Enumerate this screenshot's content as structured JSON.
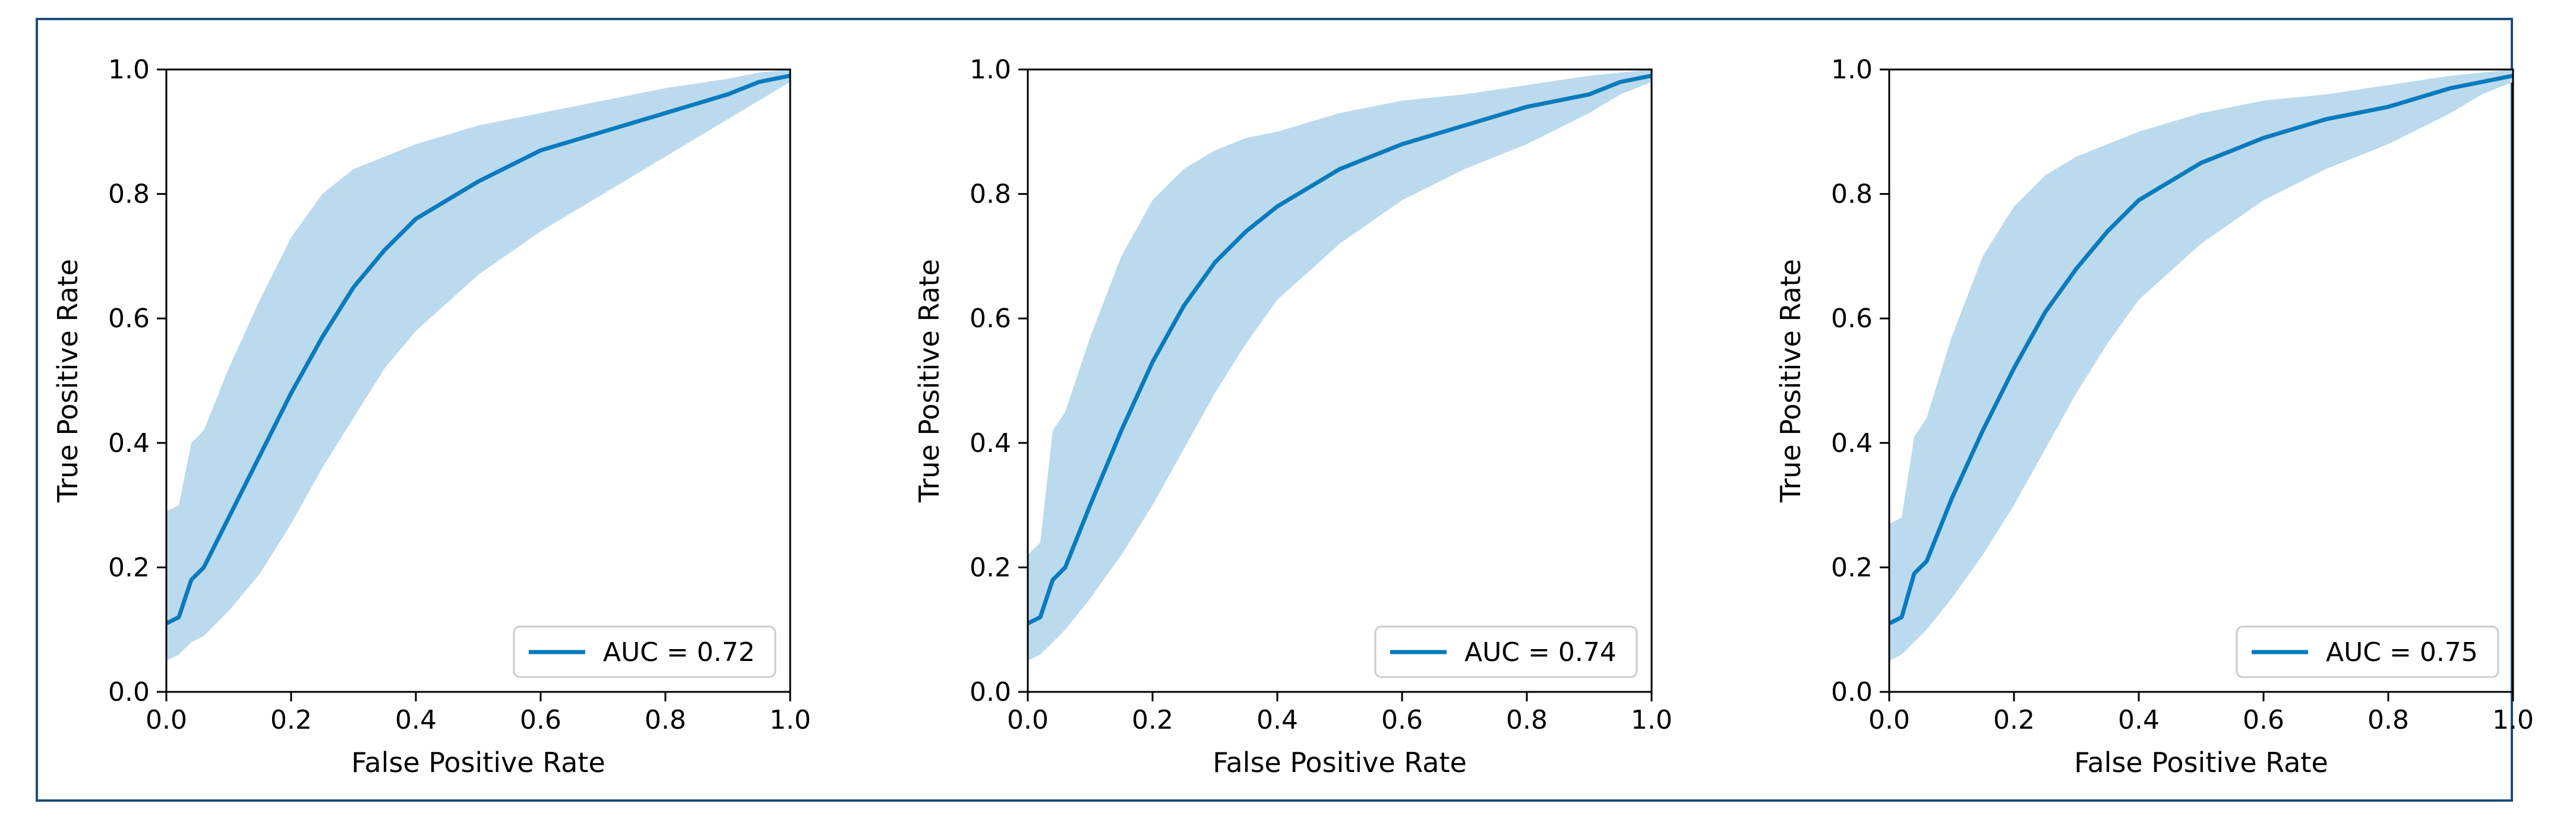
{
  "chart_data": [
    {
      "type": "line",
      "xlabel": "False Positive Rate",
      "ylabel": "True Positive Rate",
      "xlim": [
        0.0,
        1.0
      ],
      "ylim": [
        0.0,
        1.0
      ],
      "x_ticks": [
        "0.0",
        "0.2",
        "0.4",
        "0.6",
        "0.8",
        "1.0"
      ],
      "y_ticks": [
        "0.0",
        "0.2",
        "0.4",
        "0.6",
        "0.8",
        "1.0"
      ],
      "grid": false,
      "legend_position": "lower-right",
      "series": [
        {
          "name": "AUC = 0.72",
          "color": "#0a7bbd",
          "band_color": "#bcdaee",
          "x": [
            0.0,
            0.02,
            0.04,
            0.06,
            0.1,
            0.15,
            0.2,
            0.25,
            0.3,
            0.35,
            0.4,
            0.5,
            0.6,
            0.7,
            0.8,
            0.9,
            0.95,
            1.0
          ],
          "y": [
            0.11,
            0.12,
            0.18,
            0.2,
            0.28,
            0.38,
            0.48,
            0.57,
            0.65,
            0.71,
            0.76,
            0.82,
            0.87,
            0.9,
            0.93,
            0.96,
            0.98,
            0.99
          ],
          "band_upper": [
            0.29,
            0.3,
            0.4,
            0.42,
            0.52,
            0.63,
            0.73,
            0.8,
            0.84,
            0.86,
            0.88,
            0.91,
            0.93,
            0.95,
            0.97,
            0.985,
            0.995,
            1.0
          ],
          "band_lower": [
            0.05,
            0.06,
            0.08,
            0.09,
            0.13,
            0.19,
            0.27,
            0.36,
            0.44,
            0.52,
            0.58,
            0.67,
            0.74,
            0.8,
            0.86,
            0.92,
            0.95,
            0.98
          ]
        }
      ]
    },
    {
      "type": "line",
      "xlabel": "False Positive Rate",
      "ylabel": "True Positive Rate",
      "xlim": [
        0.0,
        1.0
      ],
      "ylim": [
        0.0,
        1.0
      ],
      "x_ticks": [
        "0.0",
        "0.2",
        "0.4",
        "0.6",
        "0.8",
        "1.0"
      ],
      "y_ticks": [
        "0.0",
        "0.2",
        "0.4",
        "0.6",
        "0.8",
        "1.0"
      ],
      "grid": false,
      "legend_position": "lower-right",
      "series": [
        {
          "name": "AUC = 0.74",
          "color": "#0a7bbd",
          "band_color": "#bcdaee",
          "x": [
            0.0,
            0.02,
            0.04,
            0.06,
            0.1,
            0.15,
            0.2,
            0.25,
            0.3,
            0.35,
            0.4,
            0.5,
            0.6,
            0.7,
            0.8,
            0.9,
            0.95,
            1.0
          ],
          "y": [
            0.11,
            0.12,
            0.18,
            0.2,
            0.3,
            0.42,
            0.53,
            0.62,
            0.69,
            0.74,
            0.78,
            0.84,
            0.88,
            0.91,
            0.94,
            0.96,
            0.98,
            0.99
          ],
          "band_upper": [
            0.22,
            0.24,
            0.42,
            0.45,
            0.57,
            0.7,
            0.79,
            0.84,
            0.87,
            0.89,
            0.9,
            0.93,
            0.95,
            0.96,
            0.975,
            0.99,
            0.995,
            1.0
          ],
          "band_lower": [
            0.05,
            0.06,
            0.08,
            0.1,
            0.15,
            0.22,
            0.3,
            0.39,
            0.48,
            0.56,
            0.63,
            0.72,
            0.79,
            0.84,
            0.88,
            0.93,
            0.96,
            0.98
          ]
        }
      ]
    },
    {
      "type": "line",
      "xlabel": "False Positive Rate",
      "ylabel": "True Positive Rate",
      "xlim": [
        0.0,
        1.0
      ],
      "ylim": [
        0.0,
        1.0
      ],
      "x_ticks": [
        "0.0",
        "0.2",
        "0.4",
        "0.6",
        "0.8",
        "1.0"
      ],
      "y_ticks": [
        "0.0",
        "0.2",
        "0.4",
        "0.6",
        "0.8",
        "1.0"
      ],
      "grid": false,
      "legend_position": "lower-right",
      "series": [
        {
          "name": "AUC = 0.75",
          "color": "#0a7bbd",
          "band_color": "#bcdaee",
          "x": [
            0.0,
            0.02,
            0.04,
            0.06,
            0.1,
            0.15,
            0.2,
            0.25,
            0.3,
            0.35,
            0.4,
            0.5,
            0.6,
            0.7,
            0.8,
            0.9,
            0.95,
            1.0
          ],
          "y": [
            0.11,
            0.12,
            0.19,
            0.21,
            0.31,
            0.42,
            0.52,
            0.61,
            0.68,
            0.74,
            0.79,
            0.85,
            0.89,
            0.92,
            0.94,
            0.97,
            0.98,
            0.99
          ],
          "band_upper": [
            0.27,
            0.28,
            0.41,
            0.44,
            0.57,
            0.7,
            0.78,
            0.83,
            0.86,
            0.88,
            0.9,
            0.93,
            0.95,
            0.96,
            0.975,
            0.99,
            0.995,
            1.0
          ],
          "band_lower": [
            0.05,
            0.06,
            0.08,
            0.1,
            0.15,
            0.22,
            0.3,
            0.39,
            0.48,
            0.56,
            0.63,
            0.72,
            0.79,
            0.84,
            0.88,
            0.93,
            0.96,
            0.98
          ]
        }
      ]
    }
  ]
}
